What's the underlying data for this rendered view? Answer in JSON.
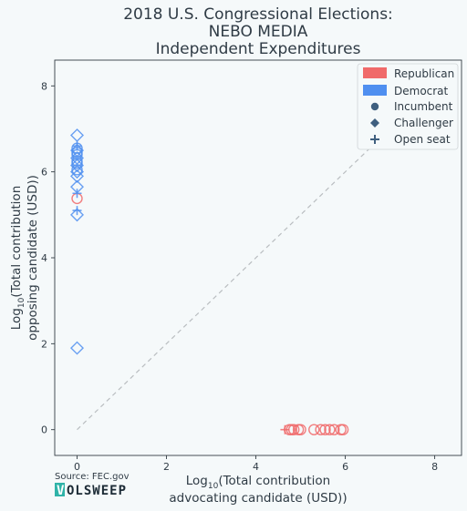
{
  "chart_data": {
    "type": "scatter",
    "title": [
      "2018 U.S. Congressional Elections:",
      "NEBO MEDIA",
      "Independent Expenditures"
    ],
    "xlabel": [
      "Log",
      "10",
      "(Total contribution",
      "advocating candidate (USD))"
    ],
    "ylabel": [
      "Log",
      "10",
      "(Total contribution",
      "opposing candidate (USD))"
    ],
    "xlim": [
      -0.5,
      8.6
    ],
    "ylim": [
      -0.6,
      8.6
    ],
    "x_ticks": [
      0,
      2,
      4,
      6,
      8
    ],
    "y_ticks": [
      0,
      2,
      4,
      6,
      8
    ],
    "grid": false,
    "legend_position": "top-right",
    "legend": {
      "parties": [
        {
          "label": "Republican",
          "color": "#f06a6a"
        },
        {
          "label": "Democrat",
          "color": "#4f8ff0"
        }
      ],
      "statuses": [
        {
          "label": "Incumbent",
          "marker": "circle"
        },
        {
          "label": "Challenger",
          "marker": "diamond"
        },
        {
          "label": "Open seat",
          "marker": "plus"
        }
      ]
    },
    "series": [
      {
        "party": "Republican",
        "points": [
          {
            "x": 4.65,
            "y": 0,
            "m": "plus"
          },
          {
            "x": 4.75,
            "y": 0,
            "m": "circle"
          },
          {
            "x": 4.8,
            "y": 0,
            "m": "circle"
          },
          {
            "x": 4.85,
            "y": 0,
            "m": "circle"
          },
          {
            "x": 4.95,
            "y": 0,
            "m": "circle"
          },
          {
            "x": 5.0,
            "y": 0,
            "m": "circle"
          },
          {
            "x": 5.3,
            "y": 0,
            "m": "circle"
          },
          {
            "x": 5.45,
            "y": 0,
            "m": "circle"
          },
          {
            "x": 5.55,
            "y": 0,
            "m": "circle"
          },
          {
            "x": 5.65,
            "y": 0,
            "m": "circle"
          },
          {
            "x": 5.75,
            "y": 0,
            "m": "circle"
          },
          {
            "x": 5.9,
            "y": 0,
            "m": "circle"
          },
          {
            "x": 5.95,
            "y": 0,
            "m": "circle"
          },
          {
            "x": 0,
            "y": 5.38,
            "m": "circle"
          }
        ]
      },
      {
        "party": "Democrat",
        "points": [
          {
            "x": 0,
            "y": 6.85,
            "m": "diamond"
          },
          {
            "x": 0,
            "y": 6.6,
            "m": "plus"
          },
          {
            "x": 0,
            "y": 6.55,
            "m": "circle"
          },
          {
            "x": 0,
            "y": 6.5,
            "m": "diamond"
          },
          {
            "x": 0,
            "y": 6.45,
            "m": "circle"
          },
          {
            "x": 0,
            "y": 6.4,
            "m": "circle"
          },
          {
            "x": 0,
            "y": 6.32,
            "m": "diamond"
          },
          {
            "x": 0,
            "y": 6.25,
            "m": "circle"
          },
          {
            "x": 0,
            "y": 6.2,
            "m": "circle"
          },
          {
            "x": 0,
            "y": 6.15,
            "m": "diamond"
          },
          {
            "x": 0,
            "y": 6.05,
            "m": "circle"
          },
          {
            "x": 0,
            "y": 6.0,
            "m": "diamond"
          },
          {
            "x": 0,
            "y": 5.9,
            "m": "diamond"
          },
          {
            "x": 0,
            "y": 5.65,
            "m": "diamond"
          },
          {
            "x": 0,
            "y": 5.5,
            "m": "plus"
          },
          {
            "x": 0,
            "y": 5.1,
            "m": "plus"
          },
          {
            "x": 0,
            "y": 5.0,
            "m": "diamond"
          },
          {
            "x": 0,
            "y": 1.9,
            "m": "diamond"
          }
        ]
      }
    ],
    "reference_line": {
      "from": [
        0,
        0
      ],
      "to": [
        7.7,
        7.7
      ],
      "style": "dashed",
      "color": "#b9bdc0"
    }
  },
  "footer": {
    "source": "Source: FEC.gov",
    "brand_mark": "V",
    "brand_rest": "OLSWEEP"
  },
  "colors": {
    "background": "#f5f9fa",
    "text": "#2f3b45",
    "brand_accent": "#2fb3a8",
    "status_marker": "#3f5f7f"
  }
}
